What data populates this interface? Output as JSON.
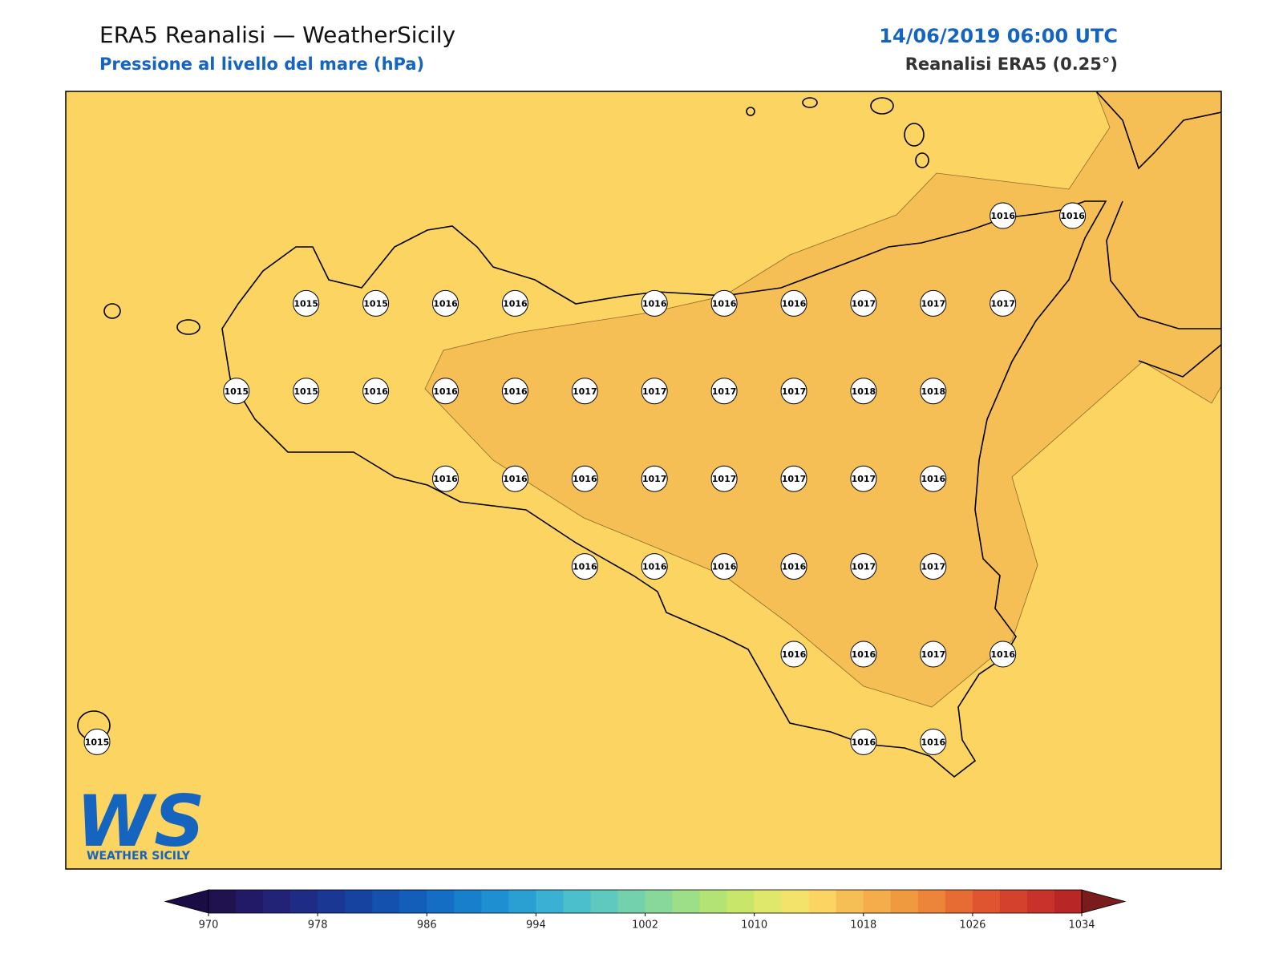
{
  "header": {
    "title": "ERA5 Reanalisi — WeatherSicily",
    "subtitle": "Pressione al livello del mare (hPa)",
    "date": "14/06/2019 06:00 UTC",
    "source": "Reanalisi ERA5 (0.25°)"
  },
  "stations": {
    "values": [
      1016,
      1016,
      1015,
      1015,
      1016,
      1016,
      1016,
      1016,
      1016,
      1017,
      1017,
      1017,
      1015,
      1015,
      1016,
      1016,
      1016,
      1017,
      1017,
      1017,
      1017,
      1018,
      1018,
      1016,
      1016,
      1016,
      1017,
      1017,
      1017,
      1017,
      1016,
      1016,
      1016,
      1016,
      1016,
      1017,
      1017,
      1016,
      1016,
      1017,
      1016,
      1015,
      1016,
      1016
    ]
  },
  "colorbar": {
    "range": [
      970,
      1034
    ],
    "ticks": [
      970,
      978,
      986,
      994,
      1002,
      1010,
      1018,
      1026,
      1034
    ],
    "under_color": "#1a0d45",
    "over_color": "#7a1c1c",
    "colors": [
      "#20124f",
      "#231a67",
      "#222377",
      "#1f2c86",
      "#1b3794",
      "#1743a0",
      "#1450ad",
      "#135eb8",
      "#146ec3",
      "#177fcc",
      "#1e8fd1",
      "#2aa0d2",
      "#3ab1d2",
      "#4cbfcc",
      "#5fc9bf",
      "#74d1ae",
      "#88d89b",
      "#9dde88",
      "#b3e275",
      "#c8e66a",
      "#dfe86a",
      "#f4e36a",
      "#fbd462",
      "#f6bf55",
      "#f4ad4a",
      "#f09a40",
      "#ec8539",
      "#e66c33",
      "#de5530",
      "#d4412d",
      "#c8322a",
      "#b82626"
    ]
  },
  "logo": {
    "letters": "WS",
    "name": "WEATHER SICILY"
  }
}
